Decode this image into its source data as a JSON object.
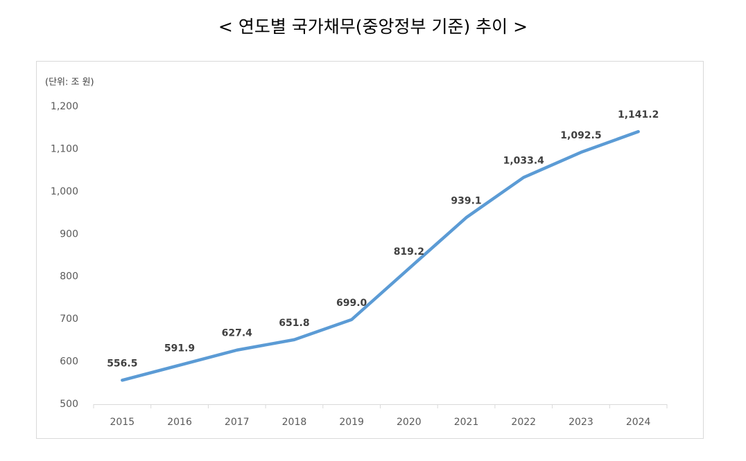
{
  "chart_data": {
    "type": "line",
    "title": "< 연도별 국가채무(중앙정부 기준) 추이 >",
    "unit_label": "(단위: 조 원)",
    "categories": [
      "2015",
      "2016",
      "2017",
      "2018",
      "2019",
      "2020",
      "2021",
      "2022",
      "2023",
      "2024"
    ],
    "values": [
      556.5,
      591.9,
      627.4,
      651.8,
      699.0,
      819.2,
      939.1,
      1033.4,
      1092.5,
      1141.2
    ],
    "value_labels": [
      "556.5",
      "591.9",
      "627.4",
      "651.8",
      "699.0",
      "819.2",
      "939.1",
      "1,033.4",
      "1,092.5",
      "1,141.2"
    ],
    "color": "#5b9bd5",
    "ylim": [
      500,
      1200
    ],
    "yticks": [
      500,
      600,
      700,
      800,
      900,
      {
        "value": 1000,
        "label": "1,000"
      },
      {
        "value": 1100,
        "label": "1,100"
      },
      {
        "value": 1200,
        "label": "1,200"
      }
    ],
    "grid": false
  }
}
